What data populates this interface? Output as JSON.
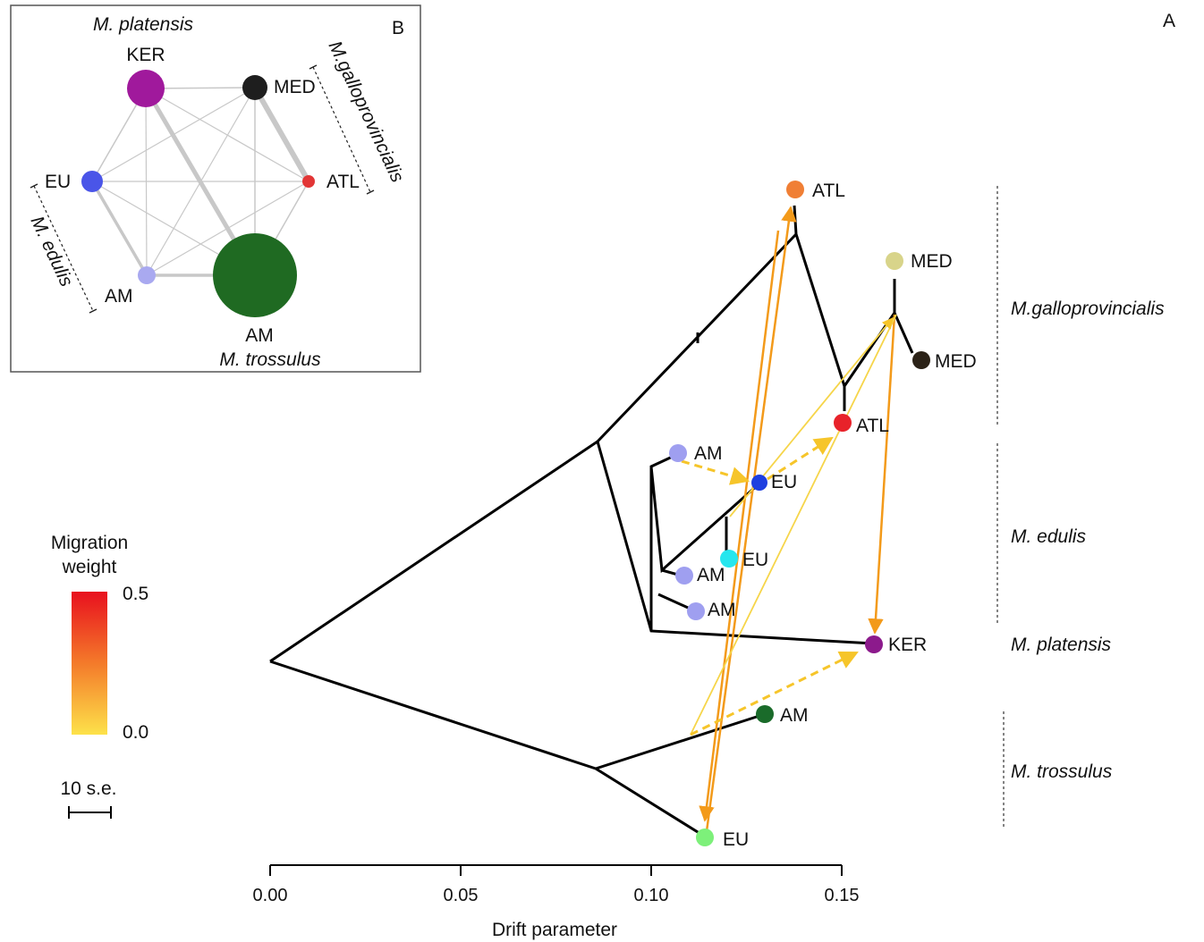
{
  "panel_a": {
    "panel_label": "A",
    "x_axis": {
      "label": "Drift parameter",
      "ticks": [
        "0.00",
        "0.05",
        "0.10",
        "0.15"
      ],
      "range": [
        0.0,
        0.15
      ]
    },
    "legend": {
      "title_line1": "Migration",
      "title_line2": "weight",
      "max_label": "0.5",
      "min_label": "0.0",
      "scale_label": "10 s.e.",
      "color_high": "#e8101e",
      "color_mid": "#f47a2a",
      "color_low": "#fde24a"
    },
    "clade_labels": [
      "M.galloprovincialis",
      "M. edulis",
      "M. platensis",
      "M. trossulus"
    ],
    "leaves": [
      {
        "label": "ATL",
        "color": "#f07f35"
      },
      {
        "label": "MED",
        "color": "#d8d48a"
      },
      {
        "label": "MED",
        "color": "#2b2217"
      },
      {
        "label": "ATL",
        "color": "#e8222a"
      },
      {
        "label": "AM",
        "color": "#9f9ff0"
      },
      {
        "label": "EU",
        "color": "#1e3fe0"
      },
      {
        "label": "EU",
        "color": "#26e6ee"
      },
      {
        "label": "AM",
        "color": "#9f9ff0"
      },
      {
        "label": "AM",
        "color": "#9f9ff0"
      },
      {
        "label": "KER",
        "color": "#8c1a8c"
      },
      {
        "label": "AM",
        "color": "#1a6b2a"
      },
      {
        "label": "EU",
        "color": "#7df07a"
      }
    ]
  },
  "panel_b": {
    "panel_label": "B",
    "species_top": "M. platensis",
    "species_bottom": "M. trossulus",
    "bracket_right": "M.galloprovincialis",
    "bracket_left": "M. edulis",
    "nodes": [
      {
        "label": "KER",
        "color": "#a0199c"
      },
      {
        "label": "MED",
        "color": "#1e1e1e"
      },
      {
        "label": "ATL",
        "color": "#e23636"
      },
      {
        "label": "EU",
        "color": "#4a55e8"
      },
      {
        "label": "AM",
        "color": "#a9a9f0"
      },
      {
        "label": "AM",
        "color": "#1f6a22"
      }
    ]
  }
}
